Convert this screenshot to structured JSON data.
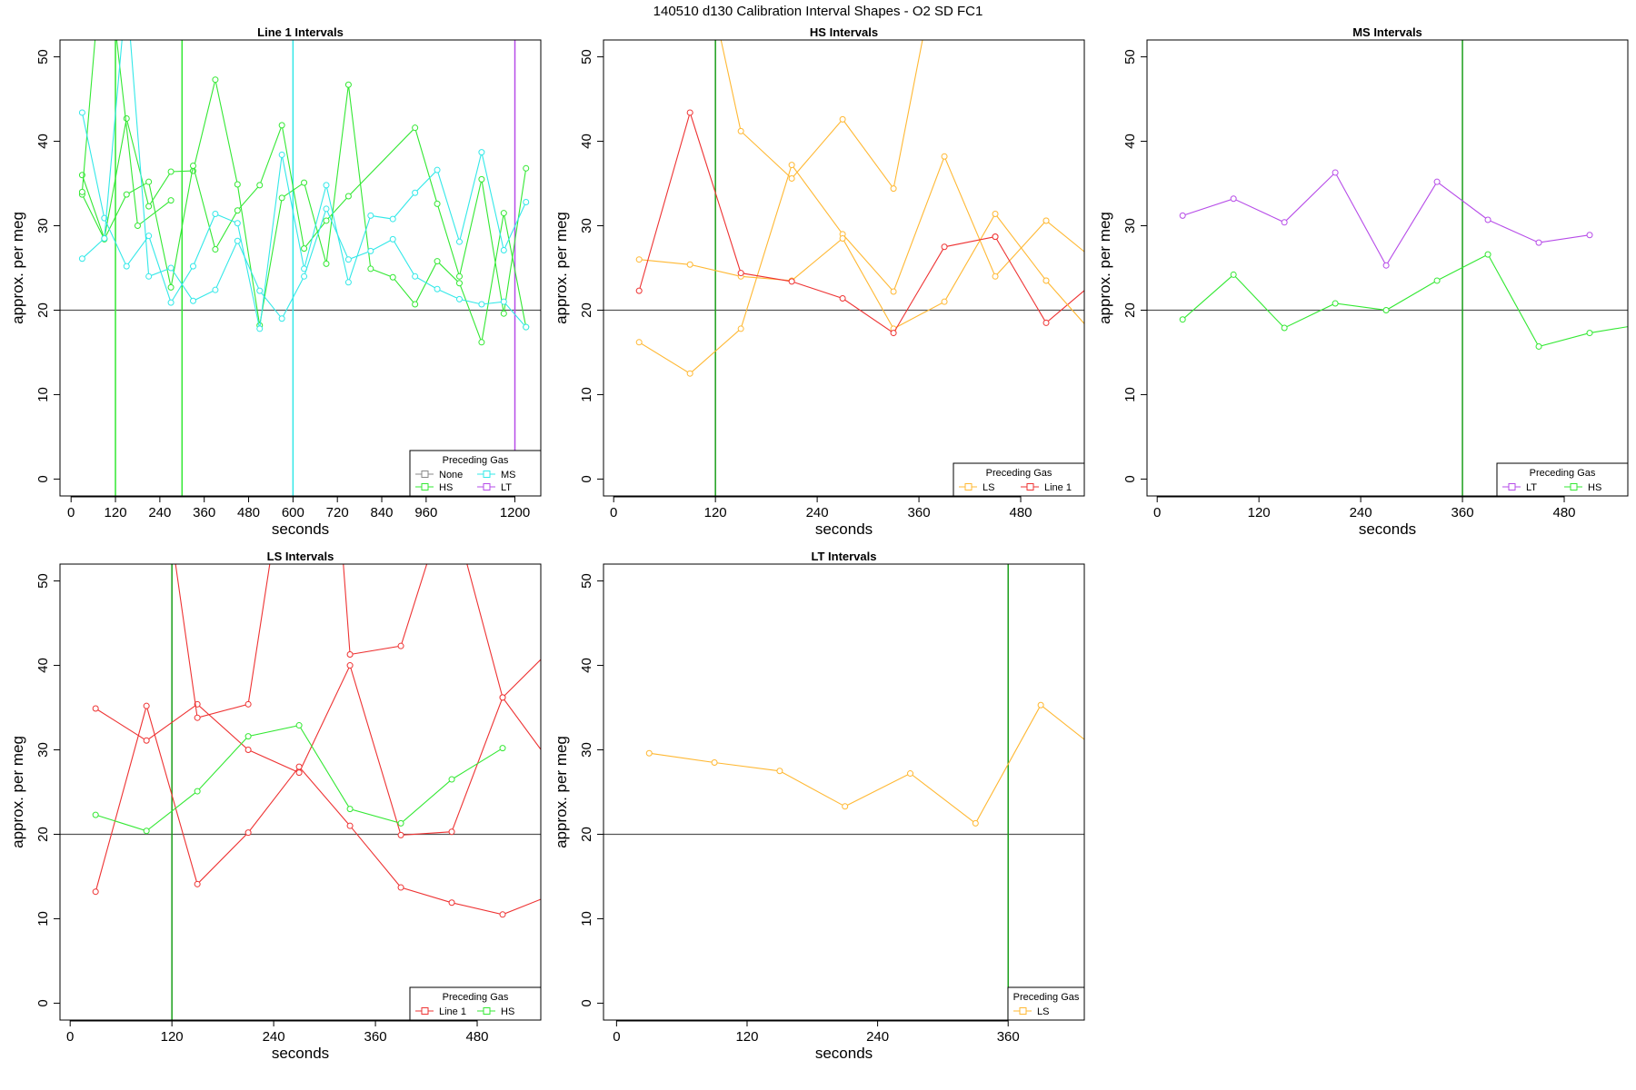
{
  "figure_title": "140510   d130   Calibration Interval Shapes - O2 SD FC1",
  "colors": {
    "None": "#888888",
    "HS": "#33e833",
    "MS": "#33e8e8",
    "LT": "#b64be8",
    "LS": "#ffb833",
    "Line 1": "#ee3333",
    "vline_green": "#1a9e1a"
  },
  "chart_data": [
    {
      "type": "line",
      "title": "Line 1 Intervals",
      "xlabel": "seconds",
      "ylabel": "approx. per meg",
      "xlim": [
        -30,
        1270
      ],
      "ylim": [
        -2,
        52
      ],
      "xticks": [
        0,
        120,
        240,
        360,
        480,
        600,
        720,
        840,
        960,
        1200
      ],
      "yticks": [
        0,
        10,
        20,
        30,
        40,
        50
      ],
      "hline": 20,
      "vlines": [
        {
          "x": 120,
          "color": "HS"
        },
        {
          "x": 300,
          "color": "HS"
        },
        {
          "x": 600,
          "color": "MS"
        },
        {
          "x": 1200,
          "color": "LT"
        }
      ],
      "legend": {
        "title": "Preceding Gas",
        "position": "bottom-right",
        "entries": [
          "None",
          "MS",
          "HS",
          "LT"
        ]
      },
      "series": [
        {
          "color": "HS",
          "x": [
            30,
            90,
            150,
            210,
            270,
            330,
            390,
            450,
            510,
            570,
            630,
            690,
            750,
            810,
            870,
            930,
            990,
            1050,
            1110,
            1170,
            1230
          ],
          "y": [
            36,
            28.5,
            42.7,
            32.3,
            36.4,
            36.5,
            47.3,
            34.9,
            18.2,
            33.3,
            35.1,
            25.5,
            46.7,
            24.9,
            23.9,
            20.7,
            25.8,
            23.2,
            16.2,
            31.5,
            18
          ]
        },
        {
          "color": "HS",
          "x": [
            30,
            90,
            150,
            210,
            270,
            330,
            390,
            450,
            510,
            570,
            630,
            690,
            750,
            930,
            990,
            1050,
            1110,
            1170,
            1230
          ],
          "y": [
            33.7,
            28.4,
            33.7,
            35.2,
            22.7,
            37.1,
            27.2,
            31.8,
            34.8,
            41.9,
            27.3,
            30.6,
            33.5,
            41.6,
            32.6,
            24,
            35.5,
            19.6,
            36.8
          ]
        },
        {
          "color": "HS",
          "x": [
            30,
            90,
            180,
            270
          ],
          "y": [
            34,
            65,
            30,
            33
          ]
        },
        {
          "color": "MS",
          "x": [
            30,
            90,
            150,
            210,
            270,
            330,
            390,
            450,
            510,
            570,
            630,
            690,
            750,
            810,
            870,
            930,
            990,
            1050,
            1110,
            1170,
            1230
          ],
          "y": [
            43.4,
            30.9,
            25.2,
            28.8,
            20.9,
            25.2,
            31.4,
            30.3,
            17.8,
            38.4,
            24.9,
            34.8,
            23.3,
            31.2,
            30.8,
            33.9,
            36.6,
            28.1,
            38.7,
            27.1,
            32.8
          ]
        },
        {
          "color": "MS",
          "x": [
            30,
            90,
            150,
            210,
            270,
            330,
            390,
            450,
            510,
            570,
            630,
            690,
            750,
            810,
            870,
            930,
            990,
            1050,
            1110,
            1170,
            1230
          ],
          "y": [
            26.1,
            28.5,
            58,
            24,
            25,
            21.1,
            22.4,
            28.2,
            22.3,
            19,
            24,
            32,
            26,
            27,
            28.4,
            24,
            22.5,
            21.3,
            20.7,
            21,
            18
          ]
        }
      ]
    },
    {
      "type": "line",
      "title": "HS Intervals",
      "xlabel": "seconds",
      "ylabel": "approx. per meg",
      "xlim": [
        -12,
        555
      ],
      "ylim": [
        -2,
        52
      ],
      "xticks": [
        0,
        120,
        240,
        360,
        480
      ],
      "yticks": [
        0,
        10,
        20,
        30,
        40,
        50
      ],
      "hline": 20,
      "vlines": [
        {
          "x": 120,
          "color": "vline_green"
        }
      ],
      "legend": {
        "title": "Preceding Gas",
        "position": "bottom-right",
        "entries": [
          "LS",
          "Line 1"
        ]
      },
      "series": [
        {
          "color": "LS",
          "x": [
            30,
            90,
            150,
            210,
            270,
            330,
            390,
            450,
            510
          ],
          "y": [
            16.2,
            12.5,
            17.8,
            37.2,
            29,
            22.2,
            38.2,
            24,
            30.6
          ]
        },
        {
          "color": "LS",
          "x": [
            30,
            90,
            150,
            210,
            270,
            330,
            390,
            450,
            510
          ],
          "y": [
            26,
            25.4,
            24,
            23.5,
            28.5,
            17.8,
            21,
            31.4,
            23.5
          ]
        },
        {
          "color": "LS",
          "x": [
            120,
            150,
            210,
            270,
            330,
            370
          ],
          "y": [
            55,
            41.2,
            35.6,
            42.6,
            34.4,
            55
          ]
        },
        {
          "color": "Line 1",
          "x": [
            30,
            90,
            150,
            210,
            270,
            330,
            390,
            450
          ],
          "y": [
            22.3,
            43.4,
            24.4,
            23.4,
            21.4,
            17.3,
            27.5,
            28.7
          ]
        },
        {
          "color": "Line 1",
          "x": [
            450,
            510,
            570
          ],
          "y": [
            28.7,
            18.5,
            23.6
          ]
        },
        {
          "color": "LS",
          "x": [
            510,
            570
          ],
          "y": [
            23.5,
            16.7
          ]
        },
        {
          "color": "LS",
          "x": [
            510,
            570
          ],
          "y": [
            30.6,
            25.7
          ]
        }
      ]
    },
    {
      "type": "line",
      "title": "MS Intervals",
      "xlabel": "seconds",
      "ylabel": "approx. per meg",
      "xlim": [
        -12,
        555
      ],
      "ylim": [
        -2,
        52
      ],
      "xticks": [
        0,
        120,
        240,
        360,
        480
      ],
      "yticks": [
        0,
        10,
        20,
        30,
        40,
        50
      ],
      "hline": 20,
      "vlines": [
        {
          "x": 360,
          "color": "vline_green"
        }
      ],
      "legend": {
        "title": "Preceding Gas",
        "position": "bottom-right",
        "entries": [
          "LT",
          "HS"
        ]
      },
      "series": [
        {
          "color": "LT",
          "x": [
            30,
            90,
            150,
            210,
            270,
            330,
            390,
            450,
            510
          ],
          "y": [
            31.2,
            33.2,
            30.4,
            36.3,
            25.3,
            35.2,
            30.7,
            28,
            28.9
          ]
        },
        {
          "color": "HS",
          "x": [
            30,
            90,
            150,
            210,
            270,
            330,
            390,
            450,
            510,
            570
          ],
          "y": [
            18.9,
            24.2,
            17.9,
            20.8,
            20,
            23.5,
            26.6,
            15.7,
            17.3,
            18.3
          ]
        }
      ]
    },
    {
      "type": "line",
      "title": "LS Intervals",
      "xlabel": "seconds",
      "ylabel": "approx. per meg",
      "xlim": [
        -12,
        555
      ],
      "ylim": [
        -2,
        52
      ],
      "xticks": [
        0,
        120,
        240,
        360,
        480
      ],
      "yticks": [
        0,
        10,
        20,
        30,
        40,
        50
      ],
      "hline": 20,
      "vlines": [
        {
          "x": 120,
          "color": "vline_green"
        }
      ],
      "legend": {
        "title": "Preceding Gas",
        "position": "bottom-right",
        "entries": [
          "Line 1",
          "HS"
        ]
      },
      "series": [
        {
          "color": "Line 1",
          "x": [
            30,
            90,
            150,
            210,
            270,
            330,
            390,
            450,
            510,
            570
          ],
          "y": [
            34.9,
            31.1,
            35.4,
            30,
            27.3,
            40,
            19.9,
            20.3,
            36.2,
            28
          ]
        },
        {
          "color": "Line 1",
          "x": [
            30,
            90,
            150,
            210,
            270,
            330,
            390,
            450,
            510,
            570
          ],
          "y": [
            13.2,
            35.2,
            14.1,
            20.2,
            28,
            21,
            13.7,
            11.9,
            10.5,
            12.9
          ]
        },
        {
          "color": "Line 1",
          "x": [
            120,
            150,
            210,
            240
          ],
          "y": [
            55,
            33.8,
            35.4,
            55
          ]
        },
        {
          "color": "Line 1",
          "x": [
            320,
            330,
            390,
            430
          ],
          "y": [
            55,
            41.3,
            42.3,
            55
          ]
        },
        {
          "color": "Line 1",
          "x": [
            460,
            510,
            570
          ],
          "y": [
            55,
            36.2,
            42.2
          ]
        },
        {
          "color": "HS",
          "x": [
            30,
            90,
            150,
            210,
            270,
            330,
            390,
            450,
            510
          ],
          "y": [
            22.3,
            20.4,
            25.1,
            31.6,
            32.9,
            23,
            21.3,
            26.5,
            30.2
          ]
        }
      ]
    },
    {
      "type": "line",
      "title": "LT Intervals",
      "xlabel": "seconds",
      "ylabel": "approx. per meg",
      "xlim": [
        -12,
        430
      ],
      "ylim": [
        -2,
        52
      ],
      "xticks": [
        0,
        120,
        240,
        360
      ],
      "yticks": [
        0,
        10,
        20,
        30,
        40,
        50
      ],
      "hline": 20,
      "vlines": [
        {
          "x": 360,
          "color": "vline_green"
        }
      ],
      "legend": {
        "title": "Preceding Gas",
        "position": "bottom-right",
        "entries": [
          "LS"
        ]
      },
      "series": [
        {
          "color": "LS",
          "x": [
            30,
            90,
            150,
            210,
            270,
            330,
            390,
            450
          ],
          "y": [
            29.6,
            28.5,
            27.5,
            23.3,
            27.2,
            21.3,
            35.3,
            29.2
          ]
        }
      ]
    }
  ]
}
